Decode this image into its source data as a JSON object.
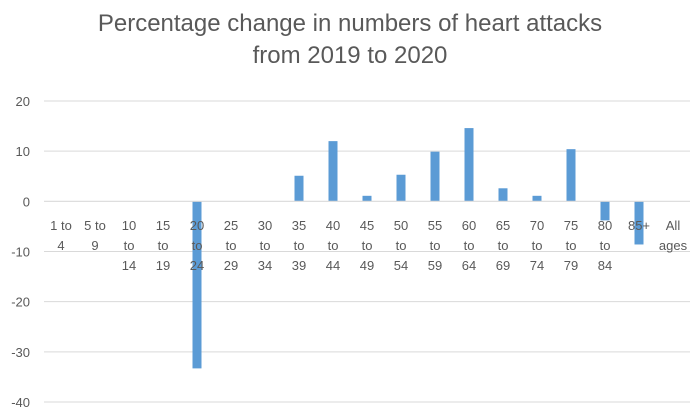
{
  "chart_data": {
    "type": "bar",
    "title_lines": [
      "Percentage change in numbers of heart attacks",
      "from 2019 to 2020"
    ],
    "categories": [
      [
        "1 to",
        "4"
      ],
      [
        "5 to",
        "9"
      ],
      [
        "10",
        "to",
        "14"
      ],
      [
        "15",
        "to",
        "19"
      ],
      [
        "20",
        "to",
        "24"
      ],
      [
        "25",
        "to",
        "29"
      ],
      [
        "30",
        "to",
        "34"
      ],
      [
        "35",
        "to",
        "39"
      ],
      [
        "40",
        "to",
        "44"
      ],
      [
        "45",
        "to",
        "49"
      ],
      [
        "50",
        "to",
        "54"
      ],
      [
        "55",
        "to",
        "59"
      ],
      [
        "60",
        "to",
        "64"
      ],
      [
        "65",
        "to",
        "69"
      ],
      [
        "70",
        "to",
        "74"
      ],
      [
        "75",
        "to",
        "79"
      ],
      [
        "80",
        "to",
        "84"
      ],
      [
        "85+"
      ],
      [
        "All",
        "ages"
      ]
    ],
    "values": [
      0,
      0,
      0,
      0,
      -33.3,
      0,
      0,
      5.1,
      12.0,
      1.1,
      5.3,
      9.9,
      14.6,
      2.6,
      1.1,
      10.4,
      -3.8,
      -8.6,
      0
    ],
    "ylim": [
      -40,
      20
    ],
    "yticks": [
      20,
      10,
      0,
      -10,
      -20,
      -30,
      -40
    ],
    "grid": true,
    "bar_color": "#5B9BD5",
    "grid_color": "#D9D9D9",
    "text_color": "#595959"
  }
}
